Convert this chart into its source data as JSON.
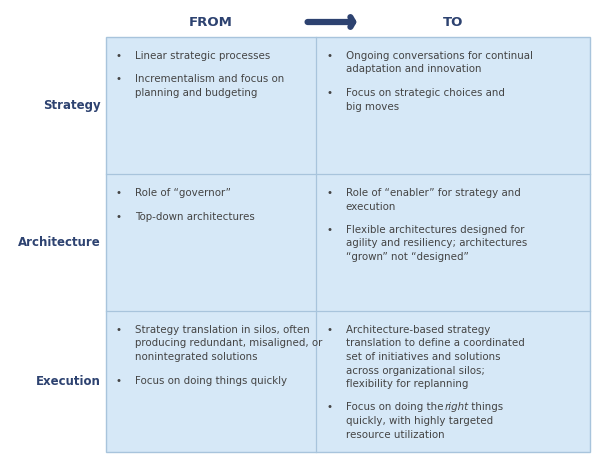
{
  "bg_color": "#ffffff",
  "table_bg": "#d6e8f7",
  "header_text_color": "#2d4270",
  "row_label_color": "#2d4270",
  "body_text_color": "#444444",
  "divider_color": "#a8c4dc",
  "arrow_color": "#2d4270",
  "from_label": "FROM",
  "to_label": "TO",
  "figsize": [
    6.0,
    4.67
  ],
  "dpi": 100,
  "rows": [
    {
      "label": "Strategy",
      "from_items": [
        "Linear strategic processes",
        "Incrementalism and focus on\nplanning and budgeting"
      ],
      "to_items": [
        "Ongoing conversations for continual\nadaptation and innovation",
        "Focus on strategic choices and\nbig moves"
      ],
      "to_italic": [
        null,
        null
      ]
    },
    {
      "label": "Architecture",
      "from_items": [
        "Role of “governor”",
        "Top-down architectures"
      ],
      "to_items": [
        "Role of “enabler” for strategy and\nexecution",
        "Flexible architectures designed for\nagility and resiliency; architectures\n“grown” not “designed”"
      ],
      "to_italic": [
        null,
        null
      ]
    },
    {
      "label": "Execution",
      "from_items": [
        "Strategy translation in silos, often\nproducing redundant, misaligned, or\nnonintegrated solutions",
        "Focus on doing things quickly"
      ],
      "to_items": [
        "Architecture-based strategy\ntranslation to define a coordinated\nset of initiatives and solutions\nacross organizational silos;\nflexibility for replanning",
        "Focus on doing the right things\nquickly, with highly targeted\nresource utilization"
      ],
      "to_italic": [
        null,
        "right"
      ]
    }
  ]
}
